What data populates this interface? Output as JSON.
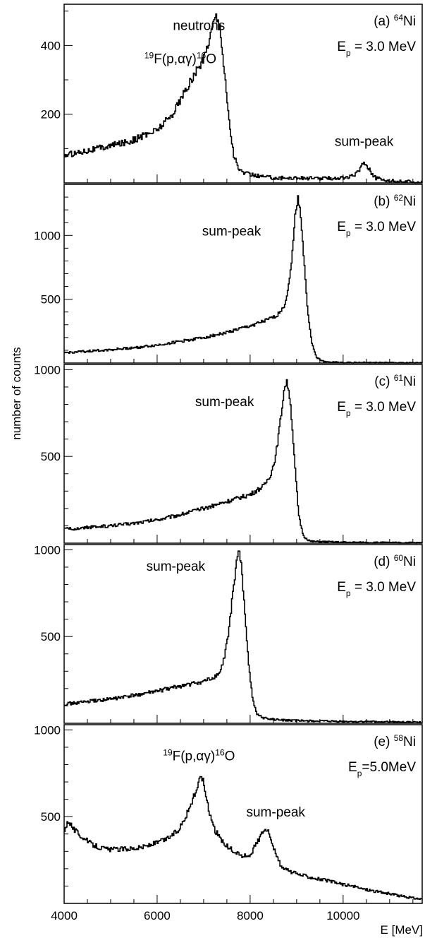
{
  "figure": {
    "ylabel": "number of counts",
    "xlabel": "E [MeV]",
    "x_ticks": [
      "4000",
      "6000",
      "8000",
      "10000"
    ]
  },
  "chart_data": [
    {
      "type": "line",
      "panel": "a",
      "label_prefix": "(a) ",
      "label_sup": "64",
      "label_suffix": "Ni",
      "energy_main": "E",
      "energy_sub": "p",
      "energy_value": " = 3.0 MeV",
      "xlim": [
        4000,
        11700
      ],
      "ylim": [
        0,
        520
      ],
      "y_ticks": [
        200,
        400
      ],
      "y_tick_labels": [
        "200",
        "400"
      ],
      "annotations": [
        {
          "parts": [
            {
              "t": "neutrons"
            }
          ],
          "x": 6900,
          "y": 445
        },
        {
          "parts": [
            {
              "t": "19",
              "sup": true
            },
            {
              "t": "F(p,αγ)"
            },
            {
              "t": "16",
              "sup": true
            },
            {
              "t": "O"
            }
          ],
          "x": 6500,
          "y": 348
        },
        {
          "parts": [
            {
              "t": "sum-peak"
            }
          ],
          "x": 10450,
          "y": 108
        }
      ],
      "points": [
        [
          4000,
          80
        ],
        [
          4500,
          95
        ],
        [
          5000,
          108
        ],
        [
          5500,
          125
        ],
        [
          6000,
          155
        ],
        [
          6300,
          195
        ],
        [
          6600,
          265
        ],
        [
          6800,
          315
        ],
        [
          7000,
          360
        ],
        [
          7100,
          410
        ],
        [
          7200,
          460
        ],
        [
          7260,
          490
        ],
        [
          7320,
          470
        ],
        [
          7380,
          420
        ],
        [
          7450,
          320
        ],
        [
          7550,
          180
        ],
        [
          7650,
          80
        ],
        [
          7750,
          40
        ],
        [
          7900,
          28
        ],
        [
          8200,
          20
        ],
        [
          8600,
          14
        ],
        [
          9000,
          15
        ],
        [
          9400,
          13
        ],
        [
          9800,
          14
        ],
        [
          10100,
          16
        ],
        [
          10250,
          22
        ],
        [
          10350,
          40
        ],
        [
          10430,
          58
        ],
        [
          10500,
          55
        ],
        [
          10600,
          32
        ],
        [
          10700,
          14
        ],
        [
          11000,
          6
        ],
        [
          11400,
          4
        ],
        [
          11700,
          3
        ]
      ]
    },
    {
      "type": "line",
      "panel": "b",
      "label_prefix": "(b) ",
      "label_sup": "62",
      "label_suffix": "Ni",
      "energy_main": "E",
      "energy_sub": "p",
      "energy_value": " = 3.0 MeV",
      "xlim": [
        4000,
        11700
      ],
      "ylim": [
        0,
        1400
      ],
      "y_ticks": [
        500,
        1000
      ],
      "y_tick_labels": [
        "500",
        "1000"
      ],
      "annotations": [
        {
          "parts": [
            {
              "t": "sum-peak"
            }
          ],
          "x": 7600,
          "y": 1000
        }
      ],
      "points": [
        [
          4000,
          80
        ],
        [
          4500,
          92
        ],
        [
          5000,
          105
        ],
        [
          5500,
          120
        ],
        [
          6000,
          140
        ],
        [
          6500,
          170
        ],
        [
          7000,
          200
        ],
        [
          7500,
          240
        ],
        [
          8000,
          290
        ],
        [
          8400,
          340
        ],
        [
          8600,
          380
        ],
        [
          8750,
          460
        ],
        [
          8850,
          650
        ],
        [
          8930,
          950
        ],
        [
          8980,
          1200
        ],
        [
          9030,
          1290
        ],
        [
          9080,
          1200
        ],
        [
          9150,
          850
        ],
        [
          9230,
          450
        ],
        [
          9330,
          150
        ],
        [
          9430,
          40
        ],
        [
          9600,
          10
        ],
        [
          10000,
          5
        ],
        [
          11000,
          3
        ],
        [
          11700,
          2
        ]
      ]
    },
    {
      "type": "line",
      "panel": "c",
      "label_prefix": "(c) ",
      "label_sup": "61",
      "label_suffix": "Ni",
      "energy_main": "E",
      "energy_sub": "p",
      "energy_value": " = 3.0 MeV",
      "xlim": [
        4000,
        11700
      ],
      "ylim": [
        0,
        1030
      ],
      "y_ticks": [
        500,
        1000
      ],
      "y_tick_labels": [
        "500",
        "1000"
      ],
      "annotations": [
        {
          "parts": [
            {
              "t": "sum-peak"
            }
          ],
          "x": 7450,
          "y": 790
        }
      ],
      "points": [
        [
          4000,
          80
        ],
        [
          4500,
          90
        ],
        [
          5000,
          100
        ],
        [
          5500,
          115
        ],
        [
          6000,
          135
        ],
        [
          6500,
          165
        ],
        [
          7000,
          200
        ],
        [
          7500,
          240
        ],
        [
          8000,
          280
        ],
        [
          8300,
          330
        ],
        [
          8450,
          400
        ],
        [
          8550,
          500
        ],
        [
          8650,
          700
        ],
        [
          8730,
          880
        ],
        [
          8780,
          930
        ],
        [
          8840,
          880
        ],
        [
          8900,
          700
        ],
        [
          8970,
          420
        ],
        [
          9050,
          150
        ],
        [
          9150,
          40
        ],
        [
          9300,
          10
        ],
        [
          10000,
          5
        ],
        [
          11000,
          3
        ],
        [
          11700,
          2
        ]
      ]
    },
    {
      "type": "line",
      "panel": "d",
      "label_prefix": "(d) ",
      "label_sup": "60",
      "label_suffix": "Ni",
      "energy_main": "E",
      "energy_sub": "p",
      "energy_value": " = 3.0 MeV",
      "xlim": [
        4000,
        11700
      ],
      "ylim": [
        0,
        1030
      ],
      "y_ticks": [
        500,
        1000
      ],
      "y_tick_labels": [
        "500",
        "1000"
      ],
      "annotations": [
        {
          "parts": [
            {
              "t": "sum-peak"
            }
          ],
          "x": 6400,
          "y": 880
        }
      ],
      "points": [
        [
          4000,
          110
        ],
        [
          4500,
          125
        ],
        [
          5000,
          140
        ],
        [
          5500,
          160
        ],
        [
          6000,
          185
        ],
        [
          6500,
          215
        ],
        [
          7000,
          240
        ],
        [
          7200,
          260
        ],
        [
          7350,
          290
        ],
        [
          7450,
          380
        ],
        [
          7550,
          550
        ],
        [
          7650,
          800
        ],
        [
          7720,
          960
        ],
        [
          7760,
          990
        ],
        [
          7810,
          920
        ],
        [
          7870,
          700
        ],
        [
          7950,
          400
        ],
        [
          8050,
          150
        ],
        [
          8150,
          50
        ],
        [
          8300,
          30
        ],
        [
          8600,
          20
        ],
        [
          9000,
          15
        ],
        [
          10000,
          10
        ],
        [
          11000,
          8
        ],
        [
          11700,
          5
        ]
      ]
    },
    {
      "type": "line",
      "panel": "e",
      "label_prefix": "(e) ",
      "label_sup": "58",
      "label_suffix": "Ni",
      "energy_main": "E",
      "energy_sub": "p",
      "energy_value": "=5.0MeV",
      "xlim": [
        4000,
        11700
      ],
      "ylim": [
        0,
        1030
      ],
      "y_ticks": [
        500,
        1000
      ],
      "y_tick_labels": [
        "500",
        "1000"
      ],
      "annotations": [
        {
          "parts": [
            {
              "t": "19",
              "sup": true
            },
            {
              "t": "F(p,αγ)"
            },
            {
              "t": "16",
              "sup": true
            },
            {
              "t": "O"
            }
          ],
          "x": 6900,
          "y": 825
        },
        {
          "parts": [
            {
              "t": "sum-peak"
            }
          ],
          "x": 8550,
          "y": 500
        }
      ],
      "points": [
        [
          4000,
          420
        ],
        [
          4100,
          480
        ],
        [
          4200,
          430
        ],
        [
          4400,
          380
        ],
        [
          4600,
          340
        ],
        [
          4800,
          320
        ],
        [
          5000,
          310
        ],
        [
          5300,
          315
        ],
        [
          5600,
          320
        ],
        [
          5900,
          340
        ],
        [
          6200,
          370
        ],
        [
          6450,
          420
        ],
        [
          6650,
          520
        ],
        [
          6800,
          620
        ],
        [
          6900,
          700
        ],
        [
          6950,
          740
        ],
        [
          7000,
          700
        ],
        [
          7100,
          550
        ],
        [
          7250,
          420
        ],
        [
          7450,
          340
        ],
        [
          7650,
          300
        ],
        [
          7850,
          270
        ],
        [
          8000,
          280
        ],
        [
          8150,
          350
        ],
        [
          8280,
          420
        ],
        [
          8350,
          430
        ],
        [
          8450,
          380
        ],
        [
          8550,
          280
        ],
        [
          8700,
          200
        ],
        [
          9000,
          170
        ],
        [
          9500,
          140
        ],
        [
          10000,
          110
        ],
        [
          10500,
          80
        ],
        [
          11000,
          55
        ],
        [
          11400,
          35
        ],
        [
          11700,
          25
        ]
      ]
    }
  ]
}
